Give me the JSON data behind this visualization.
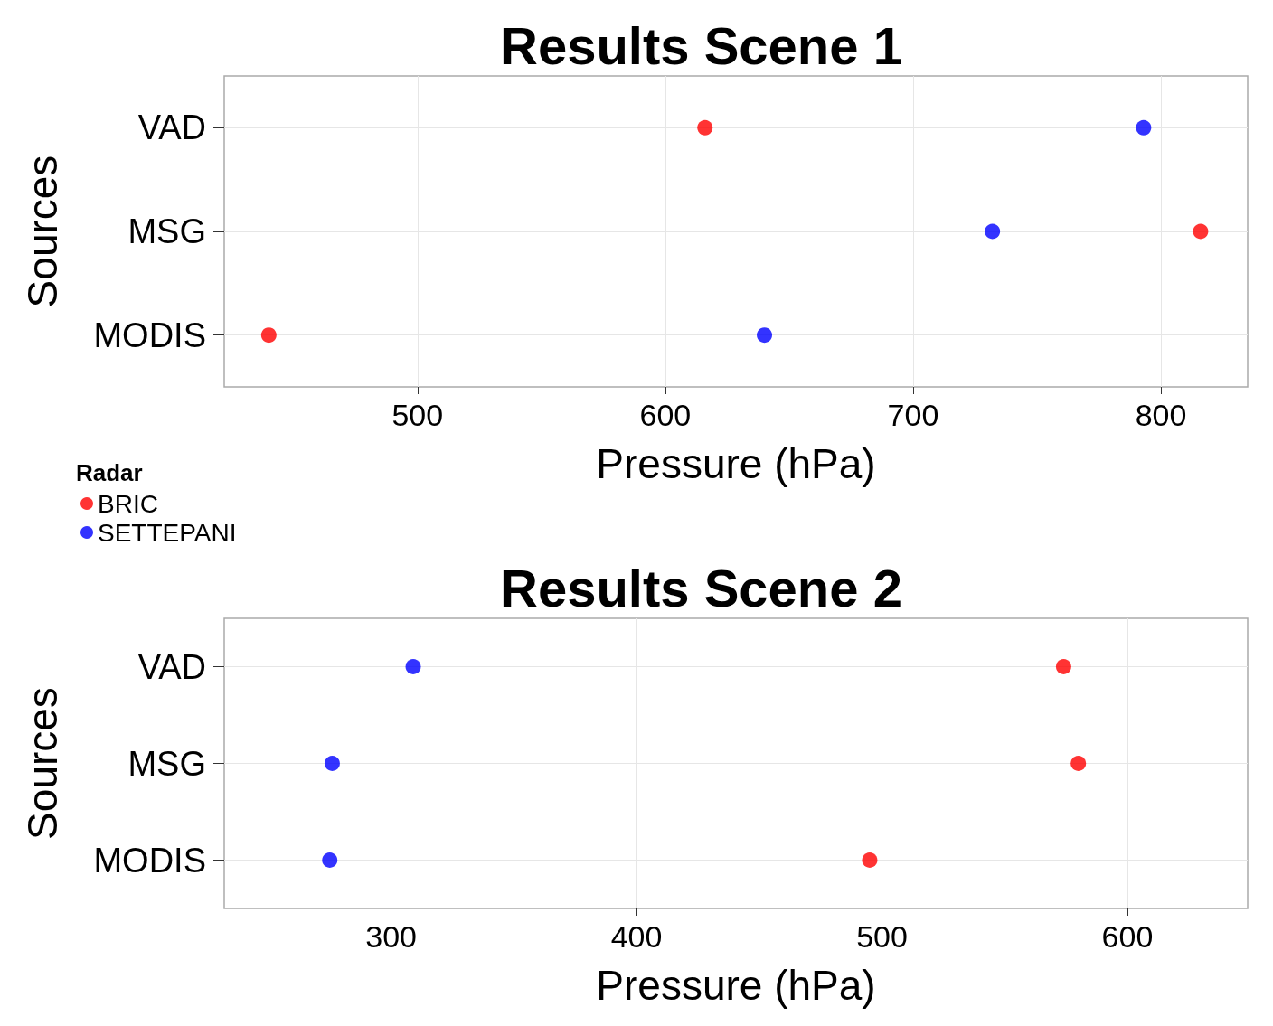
{
  "chart_data": [
    {
      "type": "scatter",
      "title": "Results Scene 1",
      "xlabel": "Pressure (hPa)",
      "ylabel": "Sources",
      "orientation": "horizontal",
      "categories": [
        "VAD",
        "MSG",
        "MODIS"
      ],
      "xlim": [
        422,
        835
      ],
      "xticks": [
        500,
        600,
        700,
        800
      ],
      "grid": true,
      "legend": "bottom left",
      "legend_title": "Radar",
      "marker": "circle",
      "series": [
        {
          "name": "BRIC",
          "color": "#ff0000",
          "values": [
            616,
            816,
            440
          ]
        },
        {
          "name": "SETTEPANI",
          "color": "#0000ff",
          "values": [
            793,
            732,
            640
          ]
        }
      ]
    },
    {
      "type": "scatter",
      "title": "Results Scene 2",
      "xlabel": "Pressure (hPa)",
      "ylabel": "Sources",
      "orientation": "horizontal",
      "categories": [
        "VAD",
        "MSG",
        "MODIS"
      ],
      "xlim": [
        232,
        649
      ],
      "xticks": [
        300,
        400,
        500,
        600
      ],
      "grid": true,
      "marker": "circle",
      "series": [
        {
          "color": "#ff0000",
          "values": [
            574,
            580,
            495
          ]
        },
        {
          "color": "#0000ff",
          "values": [
            309,
            276,
            275
          ]
        }
      ]
    }
  ]
}
